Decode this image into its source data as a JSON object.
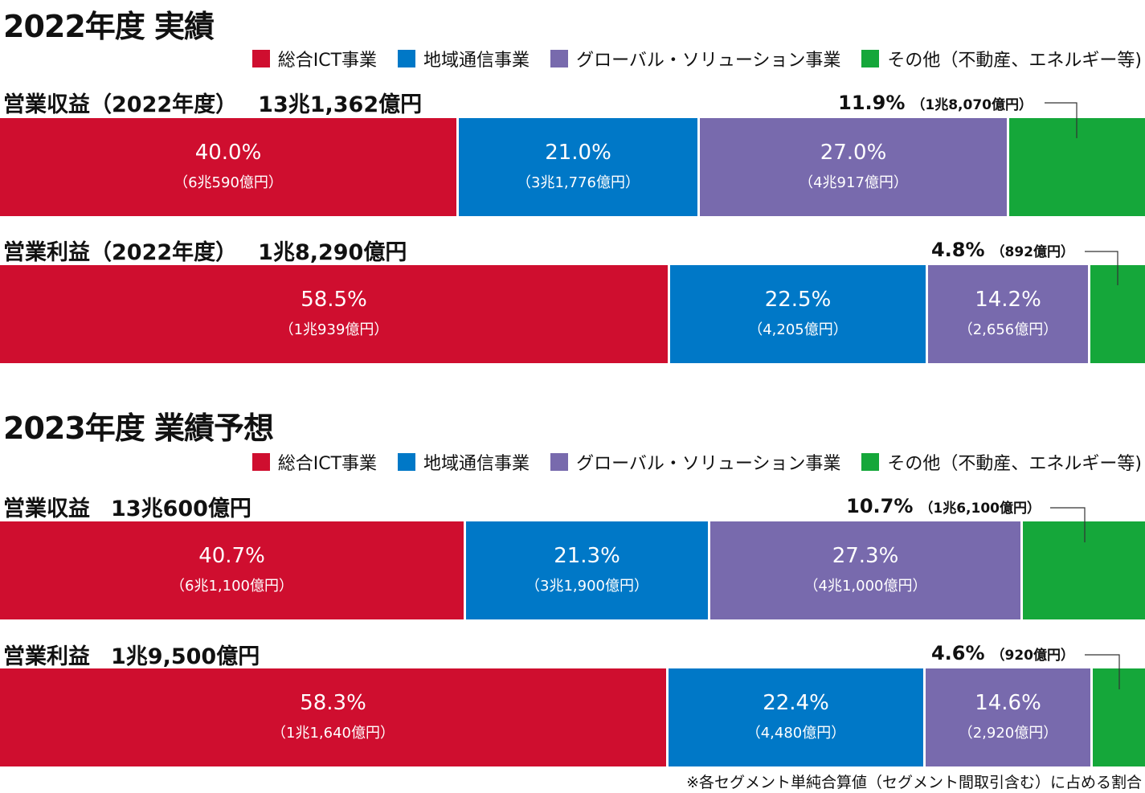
{
  "sections": [
    {
      "title": "2022年度 実績",
      "legend": [
        {
          "label": "総合ICT事業",
          "color": "#cf0e2f"
        },
        {
          "label": "地域通信事業",
          "color": "#0078c7"
        },
        {
          "label": "グローバル・ソリューション事業",
          "color": "#786aad"
        },
        {
          "label": "その他（不動産、エネルギー等)",
          "color": "#15a73a"
        }
      ],
      "rows": [
        {
          "label": "営業収益（2022年度）",
          "total": "13兆1,362億円",
          "segments": [
            {
              "pct": "40.0%",
              "amount": "（6兆590億円）"
            },
            {
              "pct": "21.0%",
              "amount": "（3兆1,776億円）"
            },
            {
              "pct": "27.0%",
              "amount": "（4兆917億円）"
            }
          ],
          "other": {
            "pct": "11.9%",
            "amount": "（1兆8,070億円）"
          }
        },
        {
          "label": "営業利益（2022年度）",
          "total": "1兆8,290億円",
          "segments": [
            {
              "pct": "58.5%",
              "amount": "（1兆939億円）"
            },
            {
              "pct": "22.5%",
              "amount": "（4,205億円）"
            },
            {
              "pct": "14.2%",
              "amount": "（2,656億円）"
            }
          ],
          "other": {
            "pct": "4.8%",
            "amount": "（892億円）"
          }
        }
      ]
    },
    {
      "title": "2023年度 業績予想",
      "legend": [
        {
          "label": "総合ICT事業",
          "color": "#cf0e2f"
        },
        {
          "label": "地域通信事業",
          "color": "#0078c7"
        },
        {
          "label": "グローバル・ソリューション事業",
          "color": "#786aad"
        },
        {
          "label": "その他（不動産、エネルギー等)",
          "color": "#15a73a"
        }
      ],
      "rows": [
        {
          "label": "営業収益",
          "total": "13兆600億円",
          "segments": [
            {
              "pct": "40.7%",
              "amount": "（6兆1,100億円）"
            },
            {
              "pct": "21.3%",
              "amount": "（3兆1,900億円）"
            },
            {
              "pct": "27.3%",
              "amount": "（4兆1,000億円）"
            }
          ],
          "other": {
            "pct": "10.7%",
            "amount": "（1兆6,100億円）"
          }
        },
        {
          "label": "営業利益",
          "total": "1兆9,500億円",
          "segments": [
            {
              "pct": "58.3%",
              "amount": "（1兆1,640億円）"
            },
            {
              "pct": "22.4%",
              "amount": "（4,480億円）"
            },
            {
              "pct": "14.6%",
              "amount": "（2,920億円）"
            }
          ],
          "other": {
            "pct": "4.6%",
            "amount": "（920億円）"
          }
        }
      ]
    }
  ],
  "footnote": "※各セグメント単純合算値（セグメント間取引含む）に占める割合",
  "chart_data": [
    {
      "type": "bar",
      "stacked": true,
      "orientation": "horizontal",
      "title": "営業収益（2022年度）",
      "categories": [
        "営業収益（2022年度）"
      ],
      "series": [
        {
          "name": "総合ICT事業",
          "values": [
            40.0
          ]
        },
        {
          "name": "地域通信事業",
          "values": [
            21.0
          ]
        },
        {
          "name": "グローバル・ソリューション事業",
          "values": [
            27.0
          ]
        },
        {
          "name": "その他（不動産、エネルギー等)",
          "values": [
            11.9
          ]
        }
      ]
    },
    {
      "type": "bar",
      "stacked": true,
      "orientation": "horizontal",
      "title": "営業利益（2022年度）",
      "categories": [
        "営業利益（2022年度）"
      ],
      "series": [
        {
          "name": "総合ICT事業",
          "values": [
            58.5
          ]
        },
        {
          "name": "地域通信事業",
          "values": [
            22.5
          ]
        },
        {
          "name": "グローバル・ソリューション事業",
          "values": [
            14.2
          ]
        },
        {
          "name": "その他（不動産、エネルギー等)",
          "values": [
            4.8
          ]
        }
      ]
    },
    {
      "type": "bar",
      "stacked": true,
      "orientation": "horizontal",
      "title": "営業収益",
      "categories": [
        "営業収益"
      ],
      "series": [
        {
          "name": "総合ICT事業",
          "values": [
            40.7
          ]
        },
        {
          "name": "地域通信事業",
          "values": [
            21.3
          ]
        },
        {
          "name": "グローバル・ソリューション事業",
          "values": [
            27.3
          ]
        },
        {
          "name": "その他（不動産、エネルギー等)",
          "values": [
            10.7
          ]
        }
      ]
    },
    {
      "type": "bar",
      "stacked": true,
      "orientation": "horizontal",
      "title": "営業利益",
      "categories": [
        "営業利益"
      ],
      "series": [
        {
          "name": "総合ICT事業",
          "values": [
            58.3
          ]
        },
        {
          "name": "地域通信事業",
          "values": [
            22.4
          ]
        },
        {
          "name": "グローバル・ソリューション事業",
          "values": [
            14.6
          ]
        },
        {
          "name": "その他（不動産、エネルギー等)",
          "values": [
            4.6
          ]
        }
      ]
    }
  ]
}
